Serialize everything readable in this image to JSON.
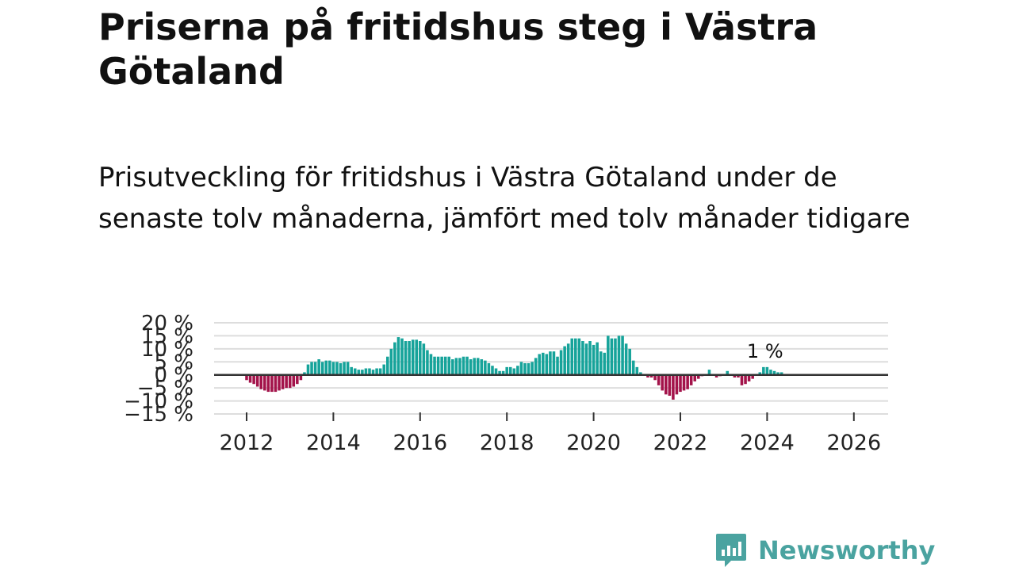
{
  "title": "Priserna på fritidshus steg i Västra Götaland",
  "subtitle": "Prisutveckling för fritidshus i Västra Götaland under de senaste tolv månaderna, jämfört med tolv månader tidigare",
  "brand": {
    "name": "Newsworthy",
    "color": "#4aa3a0"
  },
  "colors": {
    "positive": "#16a39a",
    "negative": "#a3134a",
    "grid": "#dddddd",
    "zero_line": "#333333"
  },
  "chart_data": {
    "type": "bar",
    "x_start": "2012-01",
    "x_end": "2026-09",
    "x_tick_labels": [
      "2012",
      "2014",
      "2016",
      "2018",
      "2020",
      "2022",
      "2024",
      "2026"
    ],
    "y_tick_labels": [
      "20 %",
      "15 %",
      "10 %",
      "5 %",
      "0 %",
      "−5 %",
      "−10 %",
      "−15 %"
    ],
    "y_ticks": [
      20,
      15,
      10,
      5,
      0,
      -5,
      -10,
      -15
    ],
    "ylim": [
      -15,
      20
    ],
    "grid": true,
    "annotation": {
      "text": "1 %",
      "value": 1
    },
    "series": [
      {
        "start": "2012-01",
        "values": [
          -2,
          -3,
          -3.5,
          -4.5,
          -5.5,
          -6,
          -6.5,
          -6.5,
          -6.5,
          -6,
          -5.5,
          -5,
          -5,
          -4.5,
          -3.5,
          -2,
          1,
          4,
          5,
          5,
          6,
          5,
          5.5,
          5.5,
          5,
          5,
          4.5,
          5,
          5,
          3,
          2.5,
          2,
          2,
          2.5,
          2.5,
          2,
          2.5,
          2.5,
          4,
          7,
          10,
          12.5,
          14.5,
          14,
          13,
          13,
          13.5,
          13.5,
          13,
          12,
          9.5,
          8,
          7,
          7,
          7,
          7,
          7,
          6,
          6.5,
          6.5,
          7,
          7,
          6,
          6.5,
          6.5,
          6,
          5.5,
          4.5,
          3.5,
          2.5,
          1.5,
          1.5,
          3,
          3,
          2.5,
          3.5,
          5,
          4.5,
          4.5,
          5,
          6.5,
          8,
          8.5,
          8,
          9,
          9,
          7,
          9.5,
          11,
          12,
          14,
          14,
          14,
          13,
          12,
          13,
          11.5,
          12.5,
          9,
          8.5,
          15,
          14,
          14,
          15,
          15,
          12,
          10,
          5.5,
          3,
          1,
          0,
          -1,
          -1,
          -2,
          -4,
          -6,
          -7.5,
          -8,
          -9.5,
          -7.5,
          -6.5,
          -6,
          -5.5,
          -4,
          -2.5,
          -1.5,
          -0.5,
          0,
          2,
          0,
          -1,
          -0.5,
          0,
          1.5,
          0,
          -1,
          -1,
          -4,
          -3.5,
          -2.5,
          -1.5,
          0,
          1,
          3,
          3,
          2,
          1.5,
          1,
          1
        ]
      }
    ]
  }
}
